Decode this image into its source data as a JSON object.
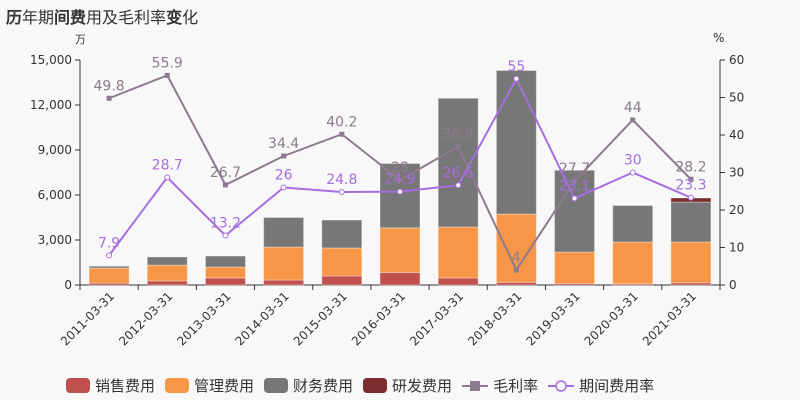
{
  "title": {
    "parts": [
      {
        "text": "历",
        "bold": true
      },
      {
        "text": "年期",
        "bold": false
      },
      {
        "text": "间费",
        "bold": true
      },
      {
        "text": "用及毛利率",
        "bold": false
      },
      {
        "text": "变",
        "bold": true
      },
      {
        "text": "化",
        "bold": false
      }
    ]
  },
  "axes": {
    "left_unit": "万",
    "right_unit": "%",
    "left_ticks": [
      "0",
      "3,000",
      "6,000",
      "9,000",
      "12,000",
      "15,000"
    ],
    "right_ticks": [
      "0",
      "10",
      "20",
      "30",
      "40",
      "50",
      "60"
    ]
  },
  "legend": {
    "items": [
      {
        "label": "销售费用",
        "type": "bar",
        "color": "#c0504d"
      },
      {
        "label": "管理费用",
        "type": "bar",
        "color": "#f79646"
      },
      {
        "label": "财务费用",
        "type": "bar",
        "color": "#777777"
      },
      {
        "label": "研发费用",
        "type": "bar",
        "color": "#7b2c2c"
      },
      {
        "label": "毛利率",
        "type": "line-square",
        "color": "#8c7b8c"
      },
      {
        "label": "期间费用率",
        "type": "line-circle",
        "color": "#a66ee0"
      }
    ]
  },
  "chart_data": {
    "type": "bar",
    "title": "历年期间费用及毛利率变化",
    "xlabel": "",
    "ylabel": "万",
    "y2label": "%",
    "ylim": [
      0,
      15000
    ],
    "y2lim": [
      0,
      60
    ],
    "grid": false,
    "legend_position": "bottom",
    "categories": [
      "2011-03-31",
      "2012-03-31",
      "2013-03-31",
      "2014-03-31",
      "2015-03-31",
      "2016-03-31",
      "2017-03-31",
      "2018-03-31",
      "2019-03-31",
      "2020-03-31",
      "2021-03-31"
    ],
    "series": [
      {
        "name": "销售费用",
        "type": "bar",
        "stack": "expense",
        "axis": "left",
        "color": "#c0504d",
        "values": [
          130,
          270,
          470,
          330,
          600,
          830,
          470,
          180,
          100,
          80,
          150
        ]
      },
      {
        "name": "管理费用",
        "type": "bar",
        "stack": "expense",
        "axis": "left",
        "color": "#f79646",
        "values": [
          1000,
          1060,
          730,
          2200,
          1870,
          2980,
          3400,
          4550,
          2100,
          2790,
          2720
        ]
      },
      {
        "name": "财务费用",
        "type": "bar",
        "stack": "expense",
        "axis": "left",
        "color": "#777777",
        "values": [
          120,
          540,
          730,
          1970,
          1860,
          4290,
          8580,
          9570,
          5450,
          2430,
          2660
        ]
      },
      {
        "name": "研发费用",
        "type": "bar",
        "stack": "expense",
        "axis": "left",
        "color": "#7b2c2c",
        "values": [
          0,
          0,
          0,
          0,
          0,
          0,
          0,
          0,
          0,
          0,
          270
        ]
      },
      {
        "name": "毛利率",
        "type": "line",
        "axis": "right",
        "color": "#8c7b8c",
        "marker": "square",
        "values": [
          49.8,
          55.9,
          26.7,
          34.4,
          40.2,
          28,
          36.9,
          4,
          27.7,
          44,
          28.2
        ]
      },
      {
        "name": "期间费用率",
        "type": "line",
        "axis": "right",
        "color": "#a66ee0",
        "marker": "circle",
        "values": [
          7.9,
          28.7,
          13.2,
          26,
          24.8,
          24.9,
          26.6,
          55,
          23.1,
          30,
          23.3
        ]
      }
    ]
  }
}
